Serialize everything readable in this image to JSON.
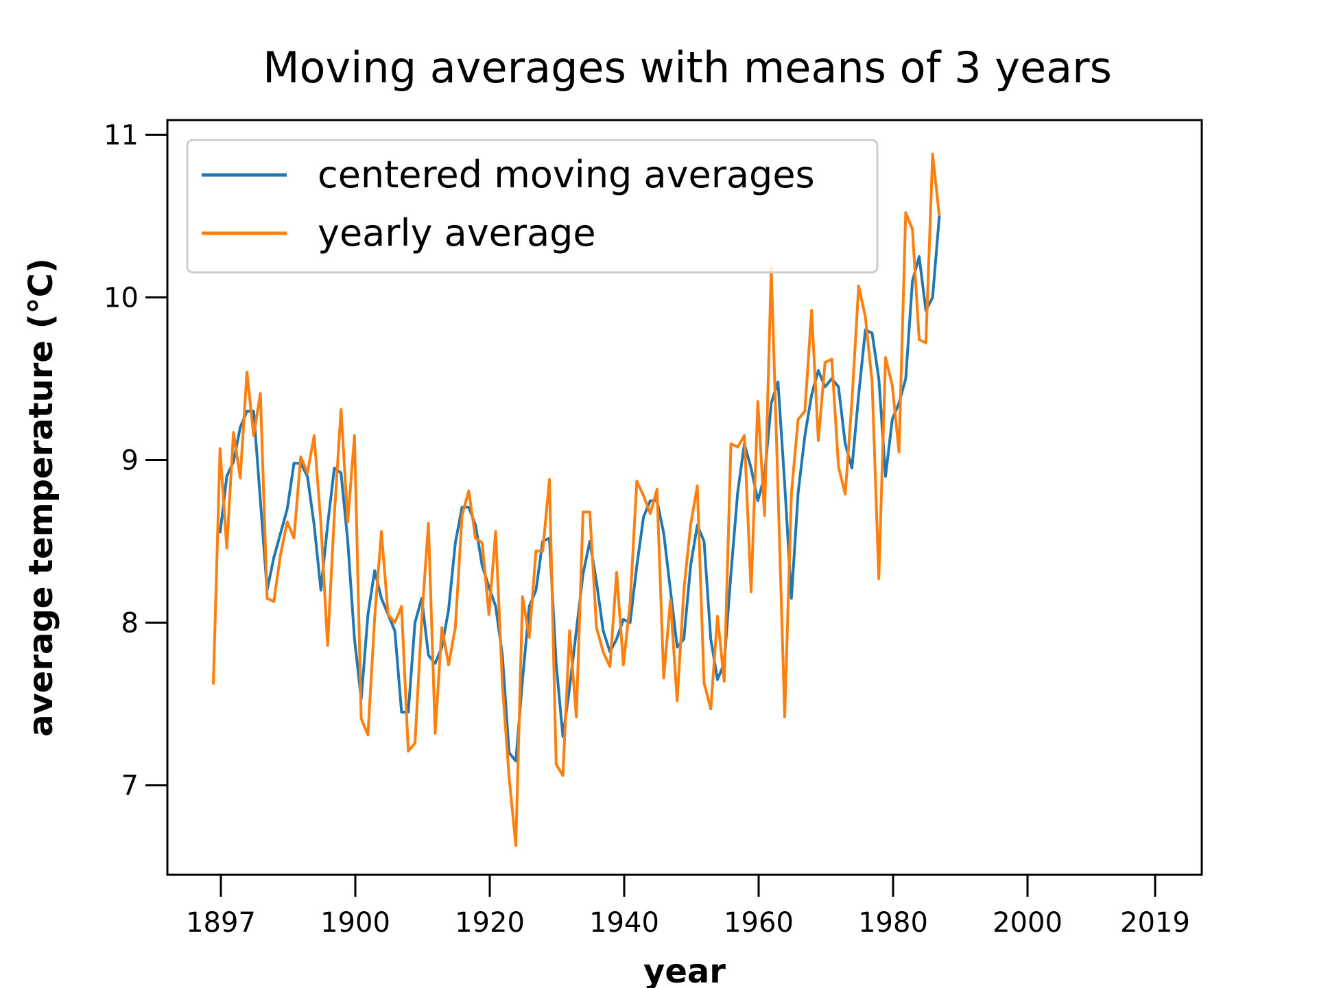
{
  "chart_data": {
    "type": "line",
    "title": "Moving averages with means of 3 years",
    "xlabel": "year",
    "ylabel": "average temperature (°C)",
    "ylim": [
      6.45,
      11.09
    ],
    "y_ticks": [
      7,
      8,
      9,
      10,
      11
    ],
    "x_tick_labels": [
      "1897",
      "1900",
      "1920",
      "1940",
      "1960",
      "1980",
      "2000",
      "2019"
    ],
    "grid": false,
    "legend_position": "top-left",
    "series": [
      {
        "name": "centered moving averages",
        "color": "#1f77b4",
        "values": [
          8.55,
          8.9,
          8.99,
          9.2,
          9.3,
          9.3,
          8.75,
          8.2,
          8.4,
          8.55,
          8.7,
          8.98,
          8.98,
          8.9,
          8.6,
          8.2,
          8.6,
          8.95,
          8.92,
          8.5,
          7.9,
          7.53,
          8.05,
          8.32,
          8.15,
          8.05,
          7.95,
          7.45,
          7.45,
          8.0,
          8.15,
          7.8,
          7.75,
          7.85,
          8.08,
          8.49,
          8.71,
          8.71,
          8.6,
          8.35,
          8.22,
          8.1,
          7.8,
          7.2,
          7.15,
          7.65,
          8.1,
          8.2,
          8.5,
          8.52,
          7.75,
          7.3,
          7.6,
          7.95,
          8.3,
          8.5,
          8.25,
          7.95,
          7.82,
          7.9,
          8.02,
          8.0,
          8.35,
          8.65,
          8.75,
          8.75,
          8.55,
          8.2,
          7.85,
          7.9,
          8.35,
          8.6,
          8.5,
          7.9,
          7.65,
          7.75,
          8.3,
          8.8,
          9.1,
          8.95,
          8.75,
          8.9,
          9.35,
          9.48,
          8.85,
          8.15,
          8.8,
          9.15,
          9.4,
          9.55,
          9.45,
          9.5,
          9.45,
          9.1,
          8.95,
          9.4,
          9.8,
          9.78,
          9.5,
          8.9,
          9.25,
          9.35,
          9.5,
          10.1,
          10.25,
          9.92,
          10.0,
          10.5
        ]
      },
      {
        "name": "yearly average",
        "color": "#ff7f0e",
        "values": [
          7.62,
          9.07,
          8.46,
          9.17,
          8.89,
          9.54,
          9.15,
          9.41,
          8.15,
          8.13,
          8.42,
          8.62,
          8.52,
          9.02,
          8.92,
          9.15,
          8.61,
          7.86,
          8.66,
          9.31,
          8.62,
          9.15,
          7.41,
          7.31,
          8.03,
          8.56,
          8.05,
          8.0,
          8.1,
          7.21,
          7.26,
          8.02,
          8.61,
          7.32,
          7.97,
          7.74,
          7.97,
          8.66,
          8.81,
          8.52,
          8.49,
          8.05,
          8.56,
          7.62,
          7.05,
          6.63,
          8.16,
          7.91,
          8.44,
          8.44,
          8.88,
          7.13,
          7.06,
          7.95,
          7.42,
          8.68,
          8.68,
          7.97,
          7.82,
          7.73,
          8.31,
          7.74,
          8.12,
          8.87,
          8.78,
          8.67,
          8.82,
          7.66,
          8.14,
          7.52,
          8.2,
          8.6,
          8.84,
          7.63,
          7.47,
          8.04,
          7.64,
          9.1,
          9.08,
          9.15,
          8.19,
          9.36,
          8.66,
          10.18,
          8.82,
          7.42,
          8.8,
          9.25,
          9.3,
          9.92,
          9.12,
          9.6,
          9.62,
          8.96,
          8.79,
          9.36,
          10.07,
          9.88,
          9.48,
          8.27,
          9.63,
          9.46,
          9.05,
          10.52,
          10.42,
          9.74,
          9.72,
          10.88,
          10.5
        ]
      }
    ]
  }
}
